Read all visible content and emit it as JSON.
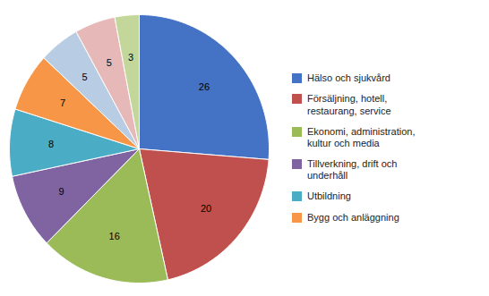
{
  "chart_data": {
    "type": "pie",
    "categories": [
      "Hälso och sjukvård",
      "Försäljning, hotell,\nrestaurang, service",
      "Ekonomi, administration,\nkultur och media",
      "Tillverkning, drift och\nunderhåll",
      "Utbildning",
      "Bygg och anläggning",
      null,
      null,
      null
    ],
    "values": [
      26,
      20,
      16,
      9,
      8,
      7,
      5,
      5,
      3
    ],
    "colors": [
      "#4472C4",
      "#C0504D",
      "#9BBB59",
      "#8064A2",
      "#4BACC6",
      "#F79646",
      "#B8CCE4",
      "#E6B9B8",
      "#C4D79B"
    ],
    "data_labels": true,
    "legend": "right"
  }
}
